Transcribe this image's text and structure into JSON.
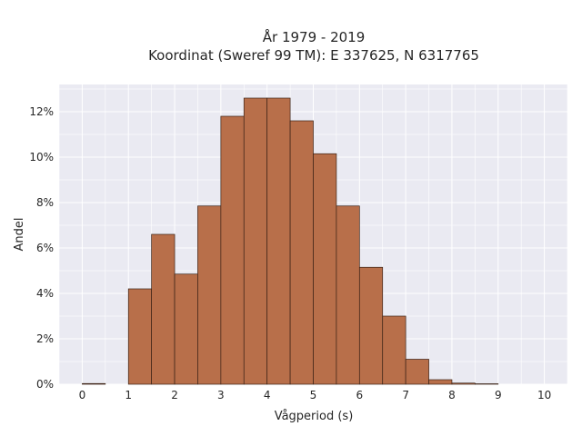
{
  "chart_data": {
    "type": "bar",
    "title": "År 1979 - 2019",
    "subtitle": "Koordinat (Sweref 99 TM): E 337625, N 6317765",
    "xlabel": "Vågperiod (s)",
    "ylabel": "Andel",
    "xlim": [
      -0.5,
      10.5
    ],
    "ylim": [
      0,
      13.2
    ],
    "x_ticks": [
      0,
      1,
      2,
      3,
      4,
      5,
      6,
      7,
      8,
      9,
      10
    ],
    "y_ticks": [
      0,
      2,
      4,
      6,
      8,
      10,
      12
    ],
    "y_tick_labels": [
      "0%",
      "2%",
      "4%",
      "6%",
      "8%",
      "10%",
      "12%"
    ],
    "bin_width": 0.5,
    "bins": [
      {
        "x0": 0.0,
        "value": 0.03
      },
      {
        "x0": 0.5,
        "value": 0.0
      },
      {
        "x0": 1.0,
        "value": 4.2
      },
      {
        "x0": 1.5,
        "value": 6.6
      },
      {
        "x0": 2.0,
        "value": 4.85
      },
      {
        "x0": 2.5,
        "value": 7.85
      },
      {
        "x0": 3.0,
        "value": 11.8
      },
      {
        "x0": 3.5,
        "value": 12.6
      },
      {
        "x0": 4.0,
        "value": 12.6
      },
      {
        "x0": 4.5,
        "value": 11.6
      },
      {
        "x0": 5.0,
        "value": 10.15
      },
      {
        "x0": 5.5,
        "value": 7.85
      },
      {
        "x0": 6.0,
        "value": 5.15
      },
      {
        "x0": 6.5,
        "value": 3.0
      },
      {
        "x0": 7.0,
        "value": 1.1
      },
      {
        "x0": 7.5,
        "value": 0.2
      },
      {
        "x0": 8.0,
        "value": 0.05
      },
      {
        "x0": 8.5,
        "value": 0.02
      }
    ],
    "grid": true,
    "colors": {
      "bar_fill": "#b86f4a",
      "bar_stroke": "#3a2216",
      "plot_background": "#eaeaf2",
      "grid": "#ffffff"
    }
  }
}
